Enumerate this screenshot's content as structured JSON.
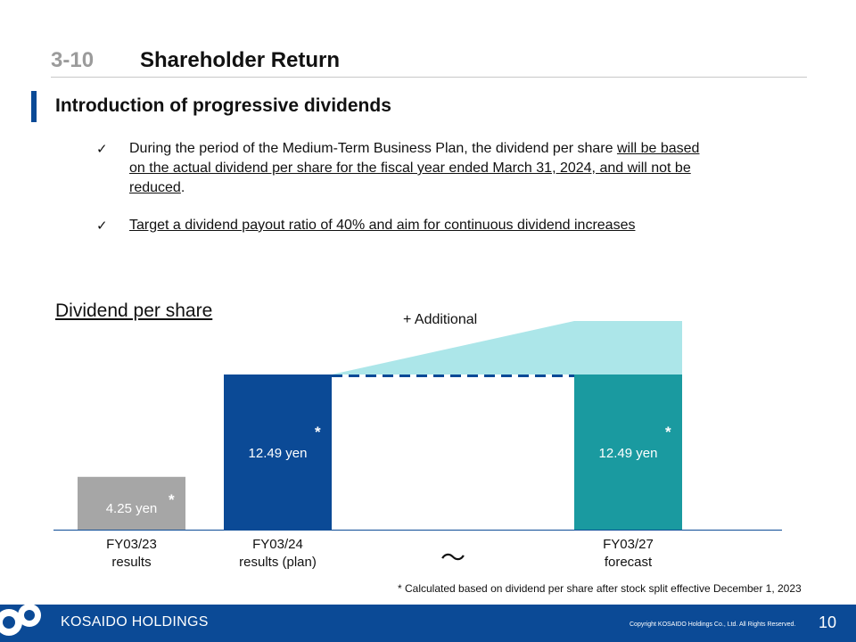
{
  "header": {
    "section_number": "3-10",
    "section_title": "Shareholder Return"
  },
  "subheading": "Introduction of progressive dividends",
  "bullets": [
    {
      "check": "✓",
      "line1_plain": "During the period of the Medium-Term Business Plan, the dividend per share ",
      "line1_underlined": "will be based",
      "line2_underlined": "on the actual dividend per share for the fiscal year ended March 31, 2024, and will not be",
      "line3_underlined": "reduced",
      "line3_plain": "."
    },
    {
      "check": "✓",
      "underlined": "Target a dividend payout ratio of 40% and aim for continuous dividend increases"
    }
  ],
  "chart_data": {
    "type": "bar",
    "title": "Dividend per share",
    "categories": [
      "FY03/23 results",
      "FY03/24 results (plan)",
      "FY03/27 forecast"
    ],
    "category_lines": [
      [
        "FY03/23",
        "results"
      ],
      [
        "FY03/24",
        "results (plan)"
      ],
      [
        "FY03/27",
        "forecast"
      ]
    ],
    "values": [
      4.25,
      12.49,
      12.49
    ],
    "value_labels": [
      "4.25 yen",
      "12.49 yen",
      "12.49 yen"
    ],
    "value_marks": [
      "*",
      "*",
      "*"
    ],
    "annotation_additional": "+ Additional",
    "break_symbol": "～",
    "colors": {
      "fy23": "#a6a6a6",
      "fy24": "#0b4a96",
      "fy27": "#1a9aa0",
      "additional": "#ace6e9",
      "dashed": "#0b4a96",
      "axis": "#0b4a96"
    }
  },
  "footnote": "* Calculated based on dividend per share after stock split effective December 1, 2023",
  "footer": {
    "brand": "KOSAIDO HOLDINGS",
    "copyright": "Copyright  KOSAIDO Holdings Co., Ltd. All Rights Reserved.",
    "page_number": "10"
  }
}
